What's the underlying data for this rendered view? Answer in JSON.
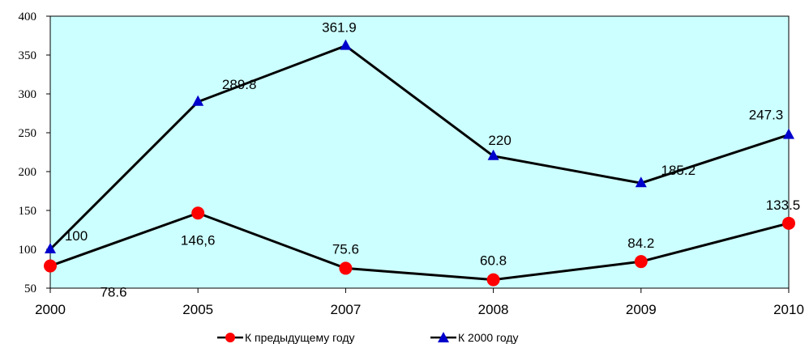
{
  "colors": {
    "plot_bg": "#ccffff",
    "line": "#000000",
    "series1_marker": "#ff0000",
    "series2_marker": "#0000cc"
  },
  "chart_data": {
    "type": "line",
    "categories": [
      "2000",
      "2005",
      "2007",
      "2008",
      "2009",
      "2010"
    ],
    "ylim": [
      50,
      400
    ],
    "yticks": [
      50,
      100,
      150,
      200,
      250,
      300,
      350,
      400
    ],
    "grid": false,
    "legend_position": "bottom",
    "series": [
      {
        "name": "К предыдущему году",
        "marker": "circle",
        "values": [
          78.6,
          146.6,
          75.6,
          60.8,
          84.2,
          133.5
        ],
        "labels": [
          "78.6",
          "146,6",
          "75.6",
          "60.8",
          "84.2",
          "133.5"
        ]
      },
      {
        "name": "К 2000 году",
        "marker": "triangle",
        "values": [
          100,
          289.8,
          361.9,
          220,
          185.2,
          247.3
        ],
        "labels": [
          "100",
          "289.8",
          "361.9",
          "220",
          "185.2",
          "247.3"
        ]
      }
    ]
  }
}
